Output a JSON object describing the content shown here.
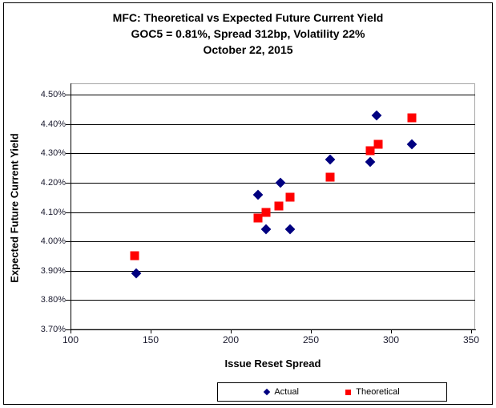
{
  "accent_colors": {
    "actual": "#000080",
    "theoretical": "#FF0000",
    "gridline": "#000000",
    "plot_border": "#A6A6A6"
  },
  "title": {
    "line1": "MFC: Theoretical vs Expected Future Current Yield",
    "line2": "GOC5 = 0.81%, Spread 312bp, Volatility 22%",
    "line3": "October 22, 2015"
  },
  "chart_data": {
    "type": "scatter",
    "title": "MFC: Theoretical vs Expected Future Current Yield",
    "subtitle": "GOC5 = 0.81%, Spread 312bp, Volatility 22%",
    "date_line": "October 22, 2015",
    "xlabel": "Issue Reset Spread",
    "ylabel": "Expected Future Current Yield",
    "xlim": [
      100,
      350
    ],
    "ylim": [
      3.7,
      4.5
    ],
    "grid": true,
    "legend_position": "bottom",
    "x_ticks": [
      {
        "label": "100",
        "value": 100
      },
      {
        "label": "150",
        "value": 150
      },
      {
        "label": "200",
        "value": 200
      },
      {
        "label": "250",
        "value": 250
      },
      {
        "label": "300",
        "value": 300
      },
      {
        "label": "350",
        "value": 350
      }
    ],
    "y_ticks": [
      {
        "label": "4.50%",
        "value": 4.5
      },
      {
        "label": "4.40%",
        "value": 4.4
      },
      {
        "label": "4.30%",
        "value": 4.3
      },
      {
        "label": "4.20%",
        "value": 4.2
      },
      {
        "label": "4.10%",
        "value": 4.1
      },
      {
        "label": "4.00%",
        "value": 4.0
      },
      {
        "label": "3.90%",
        "value": 3.9
      },
      {
        "label": "3.80%",
        "value": 3.8
      },
      {
        "label": "3.70%",
        "value": 3.7
      }
    ],
    "series": [
      {
        "name": "Actual",
        "marker": "diamond",
        "color": "#000080",
        "points": [
          {
            "x": 141,
            "y": 3.89
          },
          {
            "x": 217,
            "y": 4.16
          },
          {
            "x": 222,
            "y": 4.04
          },
          {
            "x": 231,
            "y": 4.2
          },
          {
            "x": 237,
            "y": 4.04
          },
          {
            "x": 262,
            "y": 4.28
          },
          {
            "x": 287,
            "y": 4.27
          },
          {
            "x": 291,
            "y": 4.43
          },
          {
            "x": 313,
            "y": 4.33
          }
        ]
      },
      {
        "name": "Theoretical",
        "marker": "square",
        "color": "#FF0000",
        "points": [
          {
            "x": 140,
            "y": 3.95
          },
          {
            "x": 217,
            "y": 4.08
          },
          {
            "x": 222,
            "y": 4.1
          },
          {
            "x": 230,
            "y": 4.12
          },
          {
            "x": 237,
            "y": 4.15
          },
          {
            "x": 262,
            "y": 4.22
          },
          {
            "x": 287,
            "y": 4.31
          },
          {
            "x": 292,
            "y": 4.33
          },
          {
            "x": 313,
            "y": 4.42
          }
        ]
      }
    ]
  }
}
